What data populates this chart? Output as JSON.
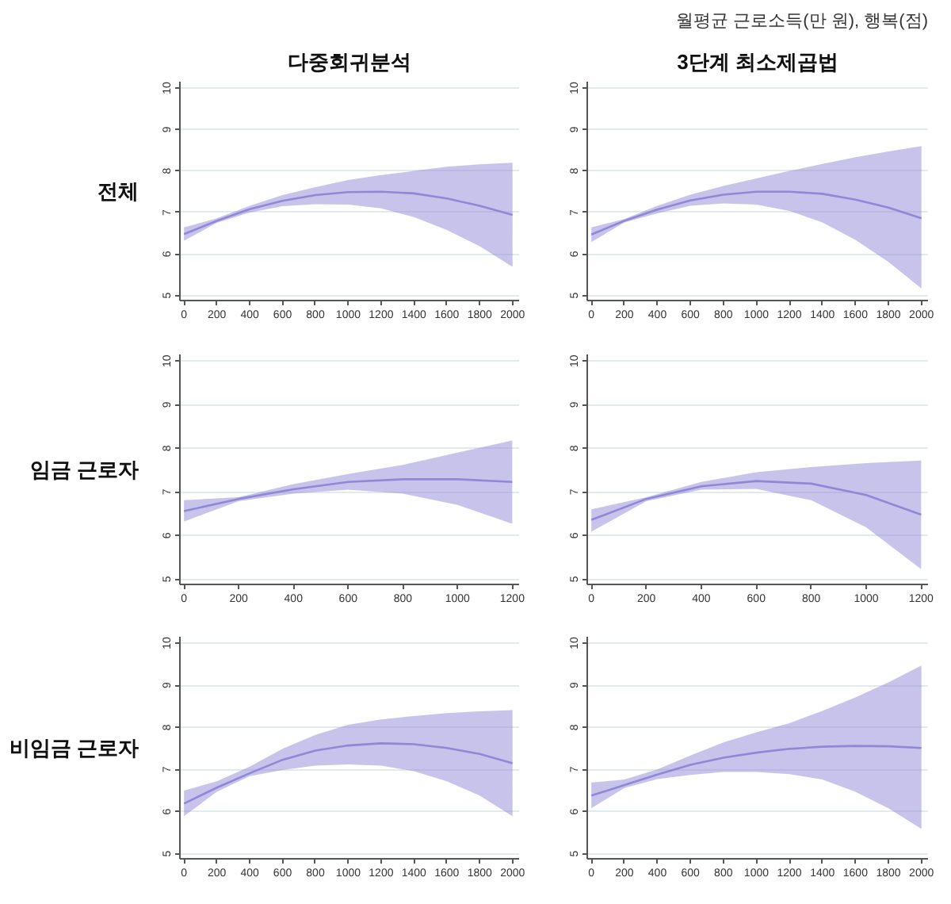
{
  "chart_data": [
    {
      "type": "line",
      "title": "다중회귀분석",
      "ylabel": "전체",
      "x": [
        0,
        200,
        400,
        600,
        800,
        1000,
        1200,
        1400,
        1600,
        1800,
        2000
      ],
      "series": [
        {
          "color": "#9187d7",
          "values": [
            6.48,
            6.8,
            7.08,
            7.28,
            7.42,
            7.49,
            7.5,
            7.46,
            7.34,
            7.16,
            6.94
          ],
          "upper": [
            6.64,
            6.86,
            7.16,
            7.42,
            7.61,
            7.78,
            7.9,
            8.0,
            8.1,
            8.16,
            8.2
          ],
          "lower": [
            6.32,
            6.75,
            7.0,
            7.15,
            7.2,
            7.19,
            7.1,
            6.89,
            6.58,
            6.19,
            5.69
          ]
        }
      ],
      "xlim": [
        -25,
        2040
      ],
      "ylim": [
        4.88,
        10.15
      ],
      "xticks": [
        0,
        200,
        400,
        600,
        800,
        1000,
        1200,
        1400,
        1600,
        1800,
        2000
      ],
      "yticks": [
        5,
        6,
        7,
        8,
        9,
        10
      ],
      "grid": "y",
      "line_style": "solid"
    },
    {
      "type": "line",
      "title": "3단계 최소제곱법",
      "annotations": [
        "월평균 근로소득(만 원), 행복(점)"
      ],
      "x": [
        0,
        200,
        400,
        600,
        800,
        1000,
        1200,
        1400,
        1600,
        1800,
        2000
      ],
      "series": [
        {
          "color": "#9187d7",
          "values": [
            6.47,
            6.8,
            7.07,
            7.29,
            7.43,
            7.5,
            7.5,
            7.45,
            7.31,
            7.12,
            6.86
          ],
          "upper": [
            6.64,
            6.84,
            7.16,
            7.43,
            7.64,
            7.82,
            8.0,
            8.17,
            8.33,
            8.47,
            8.6
          ],
          "lower": [
            6.29,
            6.76,
            6.98,
            7.16,
            7.22,
            7.19,
            7.04,
            6.76,
            6.34,
            5.81,
            5.17
          ]
        }
      ],
      "xlim": [
        -25,
        2040
      ],
      "ylim": [
        4.88,
        10.15
      ],
      "xticks": [
        0,
        200,
        400,
        600,
        800,
        1000,
        1200,
        1400,
        1600,
        1800,
        2000
      ],
      "yticks": [
        5,
        6,
        7,
        8,
        9,
        10
      ],
      "grid": "y",
      "line_style": "solid"
    },
    {
      "type": "line",
      "ylabel": "임금 근로자",
      "x": [
        0,
        200,
        400,
        600,
        800,
        1000,
        1200
      ],
      "series": [
        {
          "color": "#9187d7",
          "values": [
            6.56,
            6.84,
            7.06,
            7.23,
            7.29,
            7.29,
            7.23
          ],
          "upper": [
            6.81,
            6.88,
            7.18,
            7.41,
            7.62,
            7.9,
            8.18
          ],
          "lower": [
            6.32,
            6.79,
            6.96,
            7.05,
            6.96,
            6.7,
            6.27
          ]
        }
      ],
      "xlim": [
        -15,
        1225
      ],
      "ylim": [
        4.88,
        10.15
      ],
      "xticks": [
        0,
        200,
        400,
        600,
        800,
        1000,
        1200
      ],
      "yticks": [
        5,
        6,
        7,
        8,
        9,
        10
      ],
      "grid": "y",
      "line_style": "solid"
    },
    {
      "type": "line",
      "x": [
        0,
        200,
        400,
        600,
        800,
        1000,
        1200
      ],
      "series": [
        {
          "color": "#9187d7",
          "values": [
            6.36,
            6.84,
            7.13,
            7.25,
            7.19,
            6.93,
            6.48
          ],
          "upper": [
            6.6,
            6.88,
            7.23,
            7.45,
            7.57,
            7.66,
            7.72
          ],
          "lower": [
            6.09,
            6.79,
            7.05,
            7.07,
            6.81,
            6.19,
            5.23
          ]
        }
      ],
      "xlim": [
        -15,
        1225
      ],
      "ylim": [
        4.88,
        10.15
      ],
      "xticks": [
        0,
        200,
        400,
        600,
        800,
        1000,
        1200
      ],
      "yticks": [
        5,
        6,
        7,
        8,
        9,
        10
      ],
      "grid": "y",
      "line_style": "solid"
    },
    {
      "type": "line",
      "ylabel": "비임금 근로자",
      "x": [
        0,
        200,
        400,
        600,
        800,
        1000,
        1200,
        1400,
        1600,
        1800,
        2000
      ],
      "series": [
        {
          "color": "#9187d7",
          "values": [
            6.19,
            6.57,
            6.91,
            7.23,
            7.45,
            7.57,
            7.62,
            7.6,
            7.51,
            7.37,
            7.15
          ],
          "upper": [
            6.5,
            6.72,
            7.07,
            7.49,
            7.82,
            8.06,
            8.19,
            8.27,
            8.34,
            8.38,
            8.41
          ],
          "lower": [
            5.89,
            6.47,
            6.84,
            6.99,
            7.09,
            7.12,
            7.09,
            6.96,
            6.72,
            6.38,
            5.89
          ]
        }
      ],
      "xlim": [
        -25,
        2040
      ],
      "ylim": [
        4.88,
        10.15
      ],
      "xticks": [
        0,
        200,
        400,
        600,
        800,
        1000,
        1200,
        1400,
        1600,
        1800,
        2000
      ],
      "yticks": [
        5,
        6,
        7,
        8,
        9,
        10
      ],
      "grid": "y",
      "line_style": "solid"
    },
    {
      "type": "line",
      "x": [
        0,
        200,
        400,
        600,
        800,
        1000,
        1200,
        1400,
        1600,
        1800,
        2000
      ],
      "series": [
        {
          "color": "#9187d7",
          "values": [
            6.38,
            6.63,
            6.88,
            7.11,
            7.28,
            7.4,
            7.49,
            7.54,
            7.56,
            7.55,
            7.51
          ],
          "upper": [
            6.69,
            6.76,
            7.0,
            7.33,
            7.64,
            7.88,
            8.1,
            8.39,
            8.71,
            9.07,
            9.47
          ],
          "lower": [
            6.08,
            6.56,
            6.77,
            6.87,
            6.94,
            6.94,
            6.89,
            6.76,
            6.47,
            6.08,
            5.59
          ]
        }
      ],
      "xlim": [
        -25,
        2040
      ],
      "ylim": [
        4.88,
        10.15
      ],
      "xticks": [
        0,
        200,
        400,
        600,
        800,
        1000,
        1200,
        1400,
        1600,
        1800,
        2000
      ],
      "yticks": [
        5,
        6,
        7,
        8,
        9,
        10
      ],
      "grid": "y",
      "line_style": "solid"
    }
  ]
}
